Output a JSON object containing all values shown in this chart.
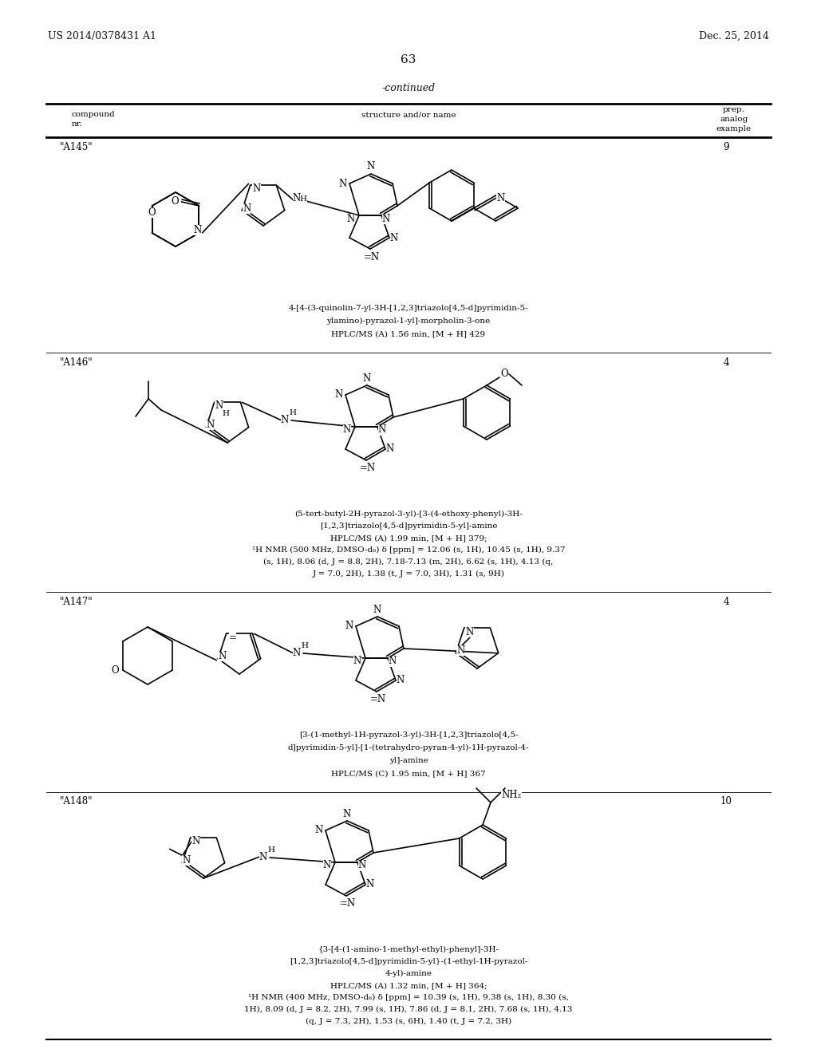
{
  "page_header_left": "US 2014/0378431 A1",
  "page_header_right": "Dec. 25, 2014",
  "page_number": "63",
  "continued_label": "-continued",
  "background_color": "#ffffff",
  "table_col1": "compound\nnr.",
  "table_col2": "structure and/or name",
  "table_col3": "prep.\nanalog\nexample",
  "compounds": [
    {
      "id": "\"A145\"",
      "example": "9",
      "name_lines": [
        "4-[4-(3-quinolin-7-yl-3H-[1,2,3]triazolo[4,5-d]pyrimidin-5-",
        "ylamino)-pyrazol-1-yl]-morpholin-3-one",
        "HPLC/MS (A) 1.56 min, [M + H] 429"
      ]
    },
    {
      "id": "\"A146\"",
      "example": "4",
      "name_lines": [
        "(5-tert-butyl-2H-pyrazol-3-yl)-[3-(4-ethoxy-phenyl)-3H-",
        "[1,2,3]triazolo[4,5-d]pyrimidin-5-yl]-amine",
        "HPLC/MS (A) 1.99 min, [M + H] 379;",
        "¹H NMR (500 MHz, DMSO-d₆) δ [ppm] = 12.06 (s, 1H), 10.45 (s, 1H), 9.37",
        "(s, 1H), 8.06 (d, J = 8.8, 2H), 7.18-7.13 (m, 2H), 6.62 (s, 1H), 4.13 (q,",
        "J = 7.0, 2H), 1.38 (t, J = 7.0, 3H), 1.31 (s, 9H)"
      ]
    },
    {
      "id": "\"A147\"",
      "example": "4",
      "name_lines": [
        "[3-(1-methyl-1H-pyrazol-3-yl)-3H-[1,2,3]triazolo[4,5-",
        "d]pyrimidin-5-yl]-[1-(tetrahydro-pyran-4-yl)-1H-pyrazol-4-",
        "yl]-amine",
        "HPLC/MS (C) 1.95 min, [M + H] 367"
      ]
    },
    {
      "id": "\"A148\"",
      "example": "10",
      "name_lines": [
        "{3-[4-(1-amino-1-methyl-ethyl)-phenyl]-3H-",
        "[1,2,3]triazolo[4,5-d]pyrimidin-5-yl}-(1-ethyl-1H-pyrazol-",
        "4-yl)-amine",
        "HPLC/MS (A) 1.32 min, [M + H] 364;",
        "¹H NMR (400 MHz, DMSO-d₆) δ [ppm] = 10.39 (s, 1H), 9.38 (s, 1H), 8.30 (s,",
        "1H), 8.09 (d, J = 8.2, 2H), 7.99 (s, 1H), 7.86 (d, J = 8.1, 2H), 7.68 (s, 1H), 4.13",
        "(q, J = 7.3, 2H), 1.53 (s, 6H), 1.40 (t, J = 7.2, 3H)"
      ]
    }
  ]
}
